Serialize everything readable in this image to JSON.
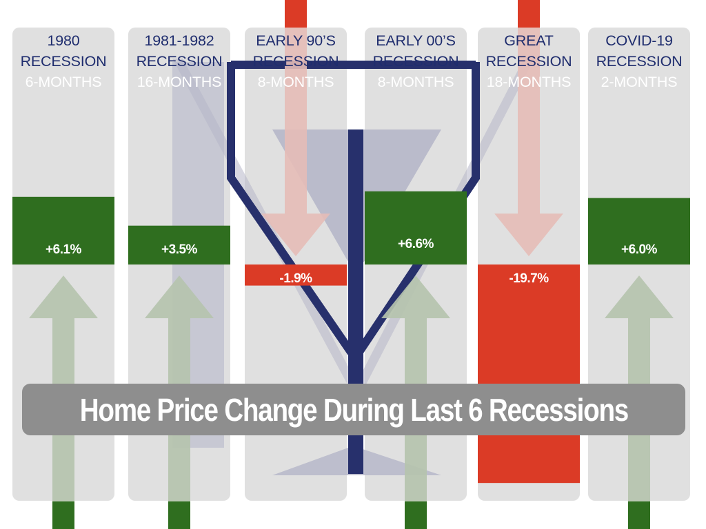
{
  "chart_data": {
    "type": "bar",
    "title": "Home Price Change During Last 6 Recessions",
    "xlabel": "",
    "ylabel": "",
    "ylim": [
      -20,
      7
    ],
    "categories": [
      {
        "name": "1980",
        "subtitle": "RECESSION",
        "duration": "6-MONTHS"
      },
      {
        "name": "1981-1982",
        "subtitle": "RECESSION",
        "duration": "16-MONTHS"
      },
      {
        "name": "EARLY 90’S",
        "subtitle": "RECESSION",
        "duration": "8-MONTHS"
      },
      {
        "name": "EARLY 00’S",
        "subtitle": "RECESSION",
        "duration": "8-MONTHS"
      },
      {
        "name": "GREAT",
        "subtitle": "RECESSION",
        "duration": "18-MONTHS"
      },
      {
        "name": "COVID-19",
        "subtitle": "RECESSION",
        "duration": "2-MONTHS"
      }
    ],
    "values": [
      6.1,
      3.5,
      -1.9,
      6.6,
      -19.7,
      6.0
    ],
    "value_labels": [
      "+6.1%",
      "+3.5%",
      "-1.9%",
      "+6.6%",
      "-19.7%",
      "+6.0%"
    ],
    "grid": false,
    "legend": "none"
  },
  "colors": {
    "positive": "#2f6e1f",
    "negative": "#db3b26",
    "panel": "#e0e0e0",
    "label": "#1f2d6e",
    "banner": "#8e8e8e",
    "up_arrow": "#b5c3ae",
    "down_arrow": "#e6bcb7",
    "glass_fill": "#b6b7c9",
    "glass_line": "#27306c"
  }
}
